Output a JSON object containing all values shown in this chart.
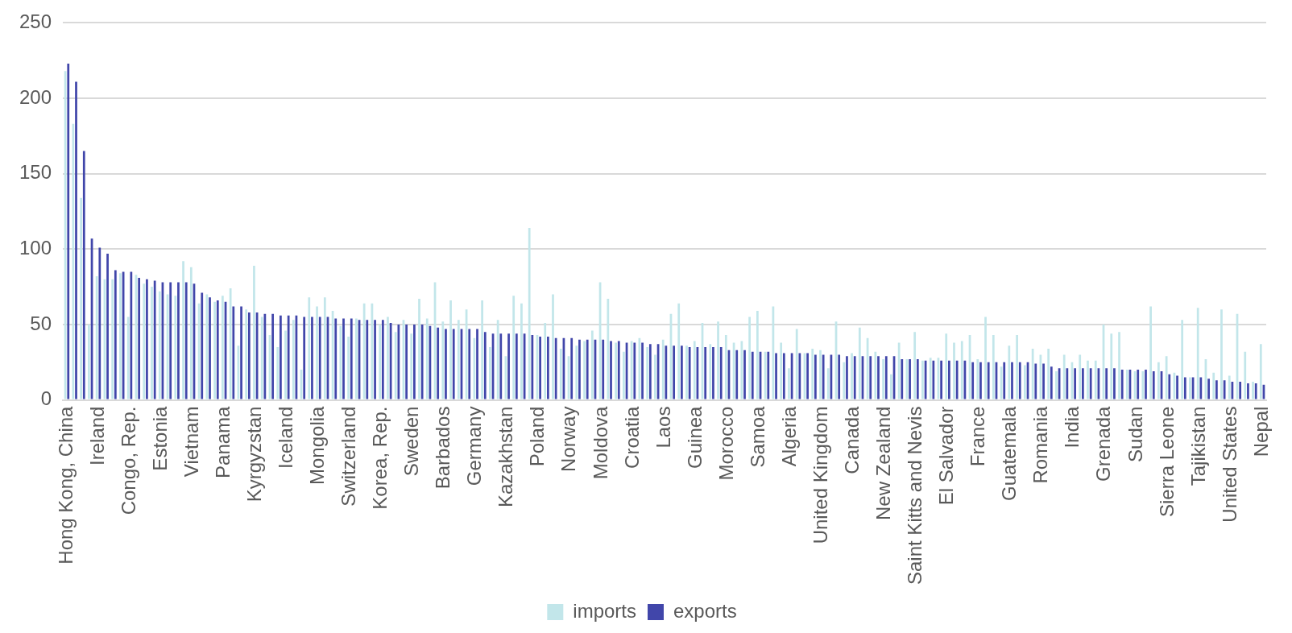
{
  "chart_data": {
    "type": "bar",
    "categories": [
      "Hong Kong, China",
      null,
      null,
      null,
      "Ireland",
      null,
      null,
      null,
      "Congo, Rep.",
      null,
      null,
      null,
      "Estonia",
      null,
      null,
      null,
      "Vietnam",
      null,
      null,
      null,
      "Panama",
      null,
      null,
      null,
      "Kyrgyzstan",
      null,
      null,
      null,
      "Iceland",
      null,
      null,
      null,
      "Mongolia",
      null,
      null,
      null,
      "Switzerland",
      null,
      null,
      null,
      "Korea, Rep.",
      null,
      null,
      null,
      "Sweden",
      null,
      null,
      null,
      "Barbados",
      null,
      null,
      null,
      "Germany",
      null,
      null,
      null,
      "Kazakhstan",
      null,
      null,
      null,
      "Poland",
      null,
      null,
      null,
      "Norway",
      null,
      null,
      null,
      "Moldova",
      null,
      null,
      null,
      "Croatia",
      null,
      null,
      null,
      "Laos",
      null,
      null,
      null,
      "Guinea",
      null,
      null,
      null,
      "Morocco",
      null,
      null,
      null,
      "Samoa",
      null,
      null,
      null,
      "Algeria",
      null,
      null,
      null,
      "United Kingdom",
      null,
      null,
      null,
      "Canada",
      null,
      null,
      null,
      "New Zealand",
      null,
      null,
      null,
      "Saint Kitts and Nevis",
      null,
      null,
      null,
      "El Salvador",
      null,
      null,
      null,
      "France",
      null,
      null,
      null,
      "Guatemala",
      null,
      null,
      null,
      "Romania",
      null,
      null,
      null,
      "India",
      null,
      null,
      null,
      "Grenada",
      null,
      null,
      null,
      "Sudan",
      null,
      null,
      null,
      "Sierra Leone",
      null,
      null,
      null,
      "Tajikistan",
      null,
      null,
      null,
      "United States",
      null,
      null,
      null,
      "Nepal"
    ],
    "series": [
      {
        "name": "imports",
        "color": "#c2e6ea",
        "values": [
          218,
          183,
          134,
          50,
          82,
          80,
          80,
          84,
          55,
          83,
          77,
          75,
          72,
          70,
          69,
          92,
          88,
          64,
          70,
          65,
          69,
          74,
          36,
          60,
          89,
          55,
          43,
          35,
          46,
          53,
          20,
          68,
          62,
          68,
          59,
          49,
          42,
          54,
          64,
          64,
          50,
          55,
          45,
          53,
          44,
          67,
          54,
          78,
          52,
          66,
          53,
          60,
          41,
          66,
          35,
          53,
          29,
          69,
          64,
          114,
          43,
          51,
          70,
          34,
          29,
          36,
          39,
          46,
          78,
          67,
          38,
          32,
          39,
          41,
          35,
          30,
          40,
          57,
          64,
          36,
          39,
          51,
          37,
          52,
          43,
          38,
          39,
          55,
          59,
          32,
          62,
          38,
          21,
          47,
          31,
          34,
          33,
          21,
          52,
          25,
          31,
          48,
          41,
          32,
          27,
          17,
          38,
          27,
          45,
          26,
          28,
          28,
          44,
          38,
          39,
          43,
          27,
          55,
          43,
          22,
          36,
          43,
          23,
          34,
          30,
          34,
          19,
          30,
          25,
          30,
          26,
          26,
          50,
          44,
          45,
          20,
          19,
          19,
          62,
          25,
          29,
          18,
          53,
          15,
          61,
          27,
          18,
          60,
          16,
          57,
          32,
          12,
          37
        ]
      },
      {
        "name": "exports",
        "color": "#4146aa",
        "values": [
          223,
          211,
          165,
          107,
          101,
          97,
          86,
          85,
          85,
          81,
          80,
          79,
          78,
          78,
          78,
          78,
          77,
          71,
          68,
          66,
          65,
          62,
          62,
          58,
          58,
          57,
          57,
          56,
          56,
          56,
          55,
          55,
          55,
          55,
          54,
          54,
          54,
          53,
          53,
          53,
          53,
          51,
          50,
          50,
          50,
          50,
          49,
          48,
          47,
          47,
          47,
          47,
          47,
          45,
          44,
          44,
          44,
          44,
          44,
          43,
          42,
          42,
          41,
          41,
          41,
          40,
          40,
          40,
          40,
          39,
          39,
          38,
          38,
          38,
          37,
          37,
          36,
          36,
          36,
          35,
          35,
          35,
          35,
          35,
          33,
          33,
          33,
          32,
          32,
          32,
          31,
          31,
          31,
          31,
          31,
          30,
          30,
          30,
          30,
          29,
          29,
          29,
          29,
          29,
          29,
          29,
          27,
          27,
          27,
          26,
          26,
          26,
          26,
          26,
          26,
          25,
          25,
          25,
          25,
          25,
          25,
          25,
          25,
          24,
          24,
          22,
          21,
          21,
          21,
          21,
          21,
          21,
          21,
          21,
          20,
          20,
          20,
          20,
          19,
          19,
          17,
          16,
          15,
          15,
          15,
          14,
          13,
          13,
          12,
          12,
          11,
          11,
          10
        ]
      }
    ],
    "ylim": [
      0,
      250
    ],
    "yticks": [
      0,
      50,
      100,
      150,
      200,
      250
    ],
    "grid": "y",
    "legend": "bottom"
  }
}
